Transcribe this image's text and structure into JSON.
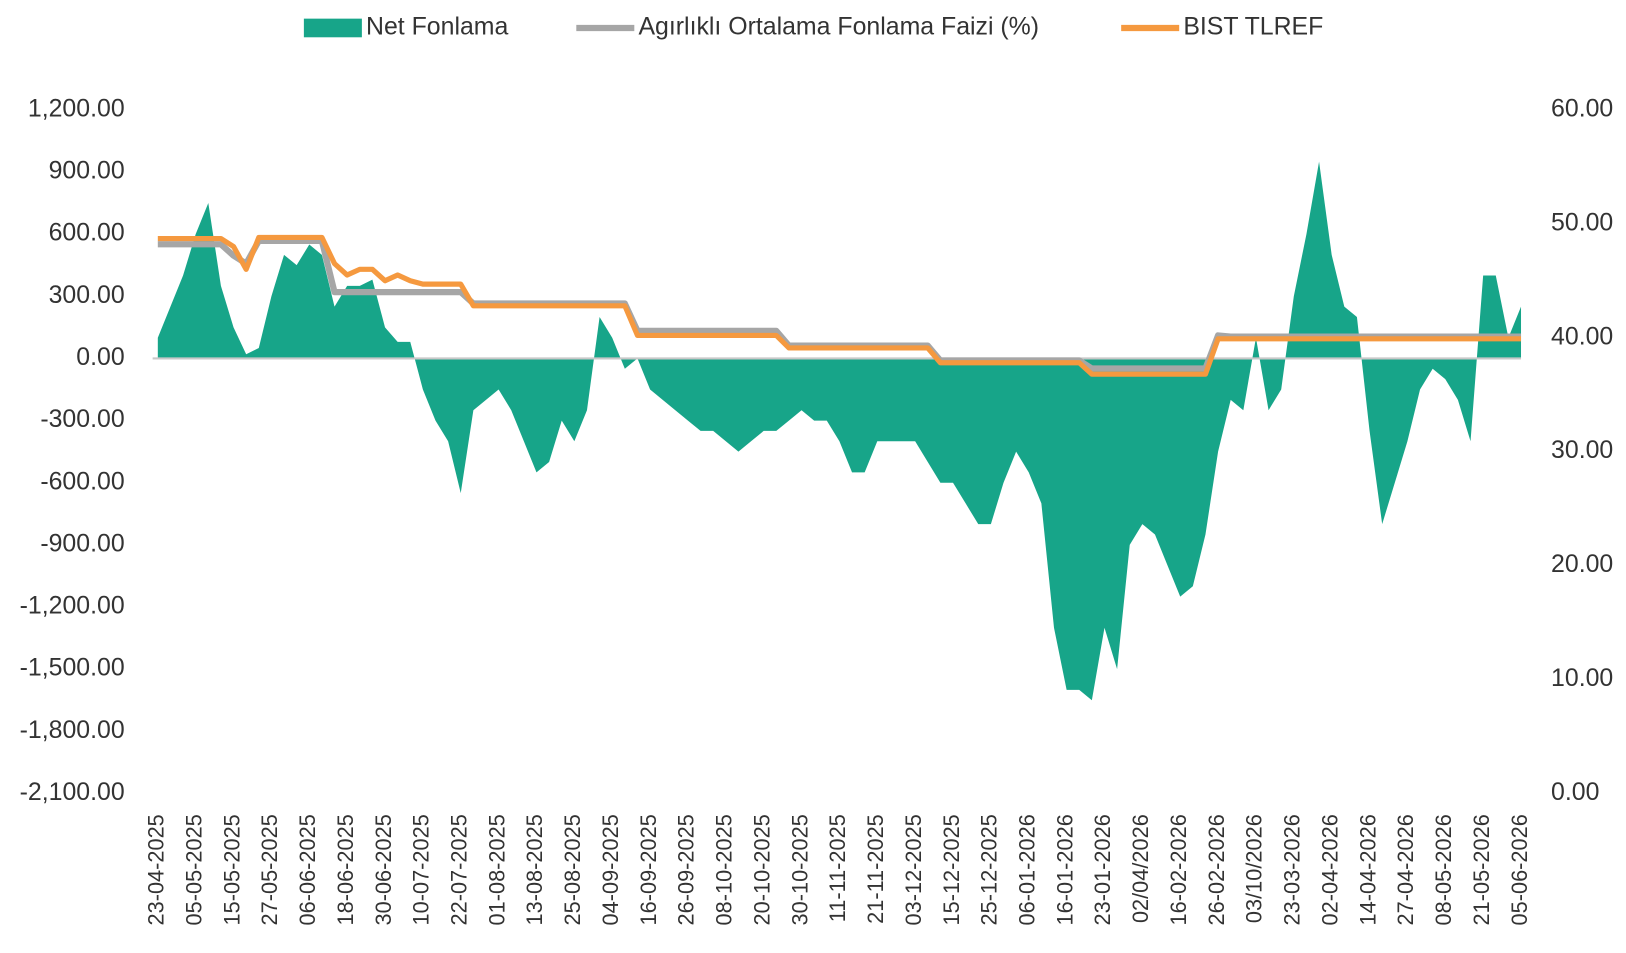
{
  "chart_data": {
    "type": "area",
    "legend": "top",
    "categories": [
      "23-04-2025",
      null,
      null,
      "05-05-2025",
      null,
      null,
      "15-05-2025",
      null,
      null,
      "27-05-2025",
      null,
      null,
      "06-06-2025",
      null,
      null,
      "18-06-2025",
      null,
      null,
      "30-06-2025",
      null,
      null,
      "10-07-2025",
      null,
      null,
      "22-07-2025",
      null,
      null,
      "01-08-2025",
      null,
      null,
      "13-08-2025",
      null,
      null,
      "25-08-2025",
      null,
      null,
      "04-09-2025",
      null,
      null,
      "16-09-2025",
      null,
      null,
      "26-09-2025",
      null,
      null,
      "08-10-2025",
      null,
      null,
      "20-10-2025",
      null,
      null,
      "30-10-2025",
      null,
      null,
      "11-11-2025",
      null,
      null,
      "21-11-2025",
      null,
      null,
      "03-12-2025",
      null,
      null,
      "15-12-2025",
      null,
      null,
      "25-12-2025",
      null,
      null,
      "06-01-2026",
      null,
      null,
      "16-01-2026",
      null,
      null,
      "23-01-2026",
      null,
      null,
      "02/04/2026",
      null,
      null,
      "16-02-2026",
      null,
      null,
      "26-02-2026",
      null,
      null,
      "03/10/2026",
      null,
      null,
      "23-03-2026",
      null,
      null,
      "02-04-2026",
      null,
      null,
      "14-04-2026",
      null,
      null,
      "27-04-2026",
      null,
      null,
      "08-05-2026",
      null,
      null,
      "21-05-2026",
      null,
      null,
      "05-06-2026"
    ],
    "series": [
      {
        "name": "Net Fonlama",
        "type": "area",
        "color": "#17a589",
        "values": [
          100,
          250,
          400,
          600,
          750,
          350,
          150,
          20,
          50,
          300,
          500,
          450,
          550,
          500,
          250,
          350,
          350,
          380,
          150,
          80,
          80,
          -150,
          -300,
          -400,
          -650,
          -250,
          -200,
          -150,
          -250,
          -400,
          -550,
          -500,
          -300,
          -400,
          -250,
          200,
          100,
          -50,
          0,
          -150,
          -200,
          -250,
          -300,
          -350,
          -350,
          -400,
          -450,
          -400,
          -350,
          -350,
          -300,
          -250,
          -300,
          -300,
          -400,
          -550,
          -550,
          -400,
          -400,
          -400,
          -400,
          -500,
          -600,
          -600,
          -700,
          -800,
          -800,
          -600,
          -450,
          -550,
          -700,
          -1300,
          -1600,
          -1600,
          -1650,
          -1300,
          -1500,
          -900,
          -800,
          -850,
          -1000,
          -1150,
          -1100,
          -850,
          -450,
          -200,
          -250,
          100,
          -250,
          -150,
          300,
          600,
          950,
          500,
          250,
          200,
          -350,
          -800,
          -600,
          -400,
          -150,
          -50,
          -100,
          -200,
          -400,
          400,
          400,
          100,
          250
        ]
      },
      {
        "name": "Agırlıklı Ortalama Fonlama Faizi (%)",
        "type": "line",
        "axis": "y2",
        "color": "#a6a6a6",
        "values": [
          48.2,
          48.2,
          48.2,
          48.2,
          48.2,
          48.2,
          47.2,
          46.5,
          48.5,
          48.5,
          48.5,
          48.5,
          48.5,
          48.5,
          44,
          44,
          44,
          44,
          44,
          44,
          44,
          44,
          44,
          44,
          44,
          43,
          43,
          43,
          43,
          43,
          43,
          43,
          43,
          43,
          43,
          43,
          43,
          43,
          40.6,
          40.6,
          40.6,
          40.6,
          40.6,
          40.6,
          40.6,
          40.6,
          40.6,
          40.6,
          40.6,
          40.6,
          39.3,
          39.3,
          39.3,
          39.3,
          39.3,
          39.3,
          39.3,
          39.3,
          39.3,
          39.3,
          39.3,
          39.3,
          38,
          38,
          38,
          38,
          38,
          38,
          38,
          38,
          38,
          38,
          38,
          38,
          37.3,
          37.3,
          37.3,
          37.3,
          37.3,
          37.3,
          37.3,
          37.3,
          37.3,
          37.3,
          40.2,
          40.1,
          40.1,
          40.1,
          40.1,
          40.1,
          40.1,
          40.1,
          40.1,
          40.1,
          40.1,
          40.1,
          40.1,
          40.1,
          40.1,
          40.1,
          40.1,
          40.1,
          40.1,
          40.1,
          40.1,
          40.1,
          40.1,
          40.1,
          40.1
        ]
      },
      {
        "name": "BIST TLREF",
        "type": "line",
        "axis": "y2",
        "color": "#f5993f",
        "values": [
          48.7,
          48.7,
          48.7,
          48.7,
          48.7,
          48.7,
          48,
          46,
          48.8,
          48.8,
          48.8,
          48.8,
          48.8,
          48.8,
          46.5,
          45.5,
          46,
          46,
          45,
          45.5,
          45,
          44.7,
          44.7,
          44.7,
          44.7,
          42.8,
          42.8,
          42.8,
          42.8,
          42.8,
          42.8,
          42.8,
          42.8,
          42.8,
          42.8,
          42.8,
          42.8,
          42.8,
          40.2,
          40.2,
          40.2,
          40.2,
          40.2,
          40.2,
          40.2,
          40.2,
          40.2,
          40.2,
          40.2,
          40.2,
          39.1,
          39.1,
          39.1,
          39.1,
          39.1,
          39.1,
          39.1,
          39.1,
          39.1,
          39.1,
          39.1,
          39.1,
          37.8,
          37.8,
          37.8,
          37.8,
          37.8,
          37.8,
          37.8,
          37.8,
          37.8,
          37.8,
          37.8,
          37.8,
          36.8,
          36.8,
          36.8,
          36.8,
          36.8,
          36.8,
          36.8,
          36.8,
          36.8,
          36.8,
          39.9,
          39.9,
          39.9,
          39.9,
          39.9,
          39.9,
          39.9,
          39.9,
          39.9,
          39.9,
          39.9,
          39.9,
          39.9,
          39.9,
          39.9,
          39.9,
          39.9,
          39.9,
          39.9,
          39.9,
          39.9,
          39.9,
          39.9,
          39.9,
          39.9
        ]
      }
    ],
    "ylim": [
      -2100,
      1200
    ],
    "yticks": [
      {
        "value": 1200,
        "label": "1,200.00"
      },
      {
        "value": 900,
        "label": "900.00"
      },
      {
        "value": 600,
        "label": "600.00"
      },
      {
        "value": 300,
        "label": "300.00"
      },
      {
        "value": 0,
        "label": "0.00"
      },
      {
        "value": -300,
        "label": "-300.00"
      },
      {
        "value": -600,
        "label": "-600.00"
      },
      {
        "value": -900,
        "label": "-900.00"
      },
      {
        "value": -1200,
        "label": "-1,200.00"
      },
      {
        "value": -1500,
        "label": "-1,500.00"
      },
      {
        "value": -1800,
        "label": "-1,800.00"
      },
      {
        "value": -2100,
        "label": "-2,100.00"
      }
    ],
    "y2lim": [
      0,
      60
    ],
    "y2ticks": [
      {
        "value": 60,
        "label": "60.00"
      },
      {
        "value": 50,
        "label": "50.00"
      },
      {
        "value": 40,
        "label": "40.00"
      },
      {
        "value": 30,
        "label": "30.00"
      },
      {
        "value": 20,
        "label": "20.00"
      },
      {
        "value": 10,
        "label": "10.00"
      },
      {
        "value": 0,
        "label": "0.00"
      }
    ]
  }
}
